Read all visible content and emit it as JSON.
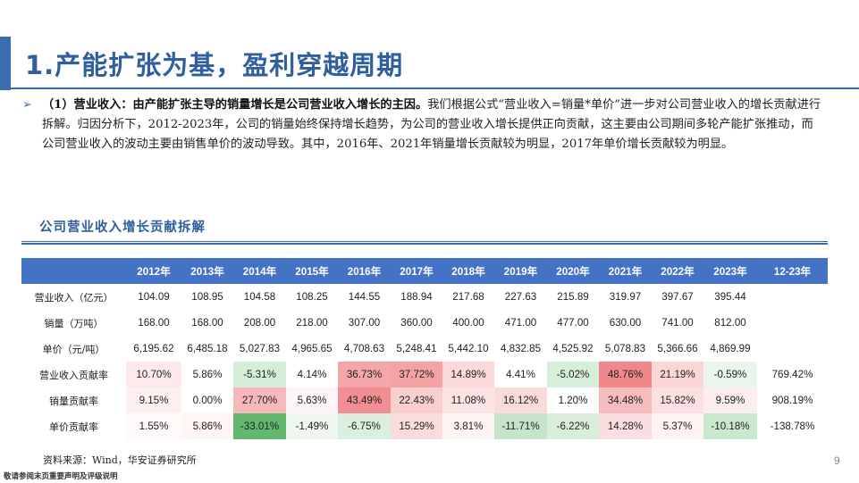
{
  "title": "1.产能扩张为基，盈利穿越周期",
  "summary": {
    "lead": "（1）营业收入：由产能扩张主导的销量增长是公司营业收入增长的主因。",
    "body": "我们根据公式“营业收入=销量*单价”进一步对公司营业收入的增长贡献进行拆解。归因分析下，2012-2023年，公司的销量始终保持增长趋势，为公司的营业收入增长提供正向贡献，这主要由公司期间多轮产能扩张推动，而公司营业收入的波动主要由销售单价的波动导致。其中，2016年、2021年销量增长贡献较为明显，2017年单价增长贡献较为明显。"
  },
  "table_title": "公司营业收入增长贡献拆解",
  "table": {
    "headers": [
      "",
      "2012年",
      "2013年",
      "2014年",
      "2015年",
      "2016年",
      "2017年",
      "2018年",
      "2019年",
      "2020年",
      "2021年",
      "2022年",
      "2023年",
      "12-23年"
    ],
    "rows": [
      {
        "label": "营业收入（亿元）",
        "cells": [
          "104.09",
          "108.95",
          "104.58",
          "108.25",
          "144.55",
          "188.94",
          "217.68",
          "227.63",
          "215.89",
          "319.97",
          "397.67",
          "395.44",
          ""
        ]
      },
      {
        "label": "销量（万吨）",
        "cells": [
          "168.00",
          "168.00",
          "208.00",
          "218.00",
          "307.00",
          "360.00",
          "400.00",
          "471.00",
          "477.00",
          "630.00",
          "741.00",
          "812.00",
          ""
        ]
      },
      {
        "label": "单价（元/吨）",
        "cells": [
          "6,195.62",
          "6,485.18",
          "5,027.83",
          "4,965.65",
          "4,708.63",
          "5,248.41",
          "5,442.10",
          "4,832.85",
          "4,525.92",
          "5,078.83",
          "5,366.66",
          "4,869.99",
          ""
        ]
      },
      {
        "label": "营业收入贡献率",
        "cells": [
          "10.70%",
          "5.86%",
          "-5.31%",
          "4.14%",
          "36.73%",
          "37.72%",
          "14.89%",
          "4.41%",
          "-5.02%",
          "48.76%",
          "21.19%",
          "-0.59%",
          "769.42%"
        ]
      },
      {
        "label": "销量贡献率",
        "cells": [
          "9.15%",
          "0.00%",
          "27.70%",
          "5.63%",
          "43.49%",
          "22.43%",
          "11.08%",
          "16.12%",
          "1.20%",
          "34.48%",
          "15.82%",
          "9.59%",
          "908.19%"
        ]
      },
      {
        "label": "单价贡献率",
        "cells": [
          "1.55%",
          "5.86%",
          "-33.01%",
          "-1.49%",
          "-6.75%",
          "15.29%",
          "3.81%",
          "-11.71%",
          "-6.22%",
          "14.28%",
          "5.37%",
          "-10.18%",
          "-138.78%"
        ]
      }
    ],
    "heat_colors": [
      [
        "#fde9e9",
        "#ffffff",
        "#d5edd9",
        "#ffffff",
        "#f4a6a8",
        "#f4a3a5",
        "#fbd9da",
        "#ffffff",
        "#d7eedb",
        "#f0878a",
        "#fbd6d7",
        "#eaf6ec",
        ""
      ],
      [
        "#fdf0f0",
        "#ffffff",
        "#f6b8ba",
        "#fef6f6",
        "#f28e91",
        "#f9cfd0",
        "#fce3e4",
        "#fbdadb",
        "#ffffff",
        "#f7bcbe",
        "#fce0e1",
        "#fdeeee",
        ""
      ],
      [
        "#fefafa",
        "#fff5f5",
        "#62b86e",
        "#edf7ef",
        "#daefdd",
        "#fbdcdd",
        "#fff4f4",
        "#c4e5c9",
        "#d8eedb",
        "#fbdee0",
        "#fff2f2",
        "#c9e8ce",
        ""
      ]
    ]
  },
  "source": "资料来源：Wind，华安证券研究所",
  "page_number": "9",
  "disclaimer": "敬请参阅末页重要声明及评级说明",
  "colors": {
    "accent": "#3a6cb0",
    "header_bg": "#4472c4",
    "positive": "#f0878a",
    "negative": "#62b86e"
  },
  "icons": {
    "bullet": "triangle-right-icon"
  }
}
